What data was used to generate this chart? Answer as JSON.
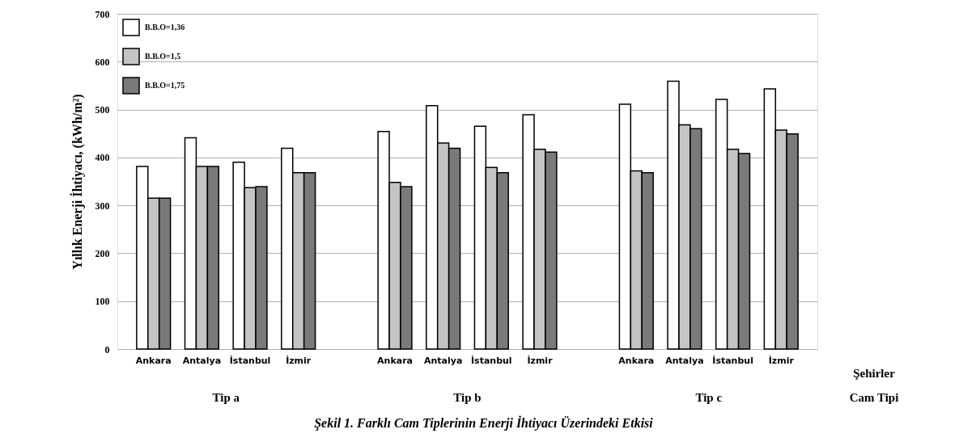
{
  "chart_data": {
    "type": "bar",
    "title": "Şekil 1. Farklı Cam Tiplerinin Enerji İhtiyacı Üzerindeki Etkisi",
    "xlabel": "Şehirler",
    "ylabel": "Yıllık  Enerji İhtiyacı, (kWh/m²)",
    "categories": [
      "Ankara",
      "Antalya",
      "İstanbul",
      "İzmir",
      null,
      "Ankara",
      "Antalya",
      "İstanbul",
      "İzmir",
      null,
      "Ankara",
      "Antalya",
      "İstanbul",
      "İzmir"
    ],
    "series": [
      {
        "name": "B.B.O=1,36",
        "color": "#ffffff",
        "values": [
          381,
          441,
          390,
          419,
          null,
          454,
          508,
          465,
          489,
          null,
          511,
          559,
          521,
          543
        ]
      },
      {
        "name": "B.B.O=1,5",
        "color": "#c4c4c4",
        "values": [
          315,
          381,
          337,
          368,
          null,
          348,
          430,
          379,
          417,
          null,
          372,
          468,
          417,
          457
        ]
      },
      {
        "name": "B.B.O=1,75",
        "color": "#7a7a7a",
        "values": [
          315,
          381,
          339,
          368,
          null,
          339,
          419,
          368,
          411,
          null,
          368,
          460,
          408,
          449
        ]
      }
    ],
    "ylim": [
      0,
      700
    ],
    "yticks": [
      0,
      100,
      200,
      300,
      400,
      500,
      600,
      700
    ],
    "grid": "y",
    "legend": "top left",
    "annotations": [
      "Tip a",
      "Tip b",
      "Tip c",
      "Cam Tipi"
    ]
  }
}
